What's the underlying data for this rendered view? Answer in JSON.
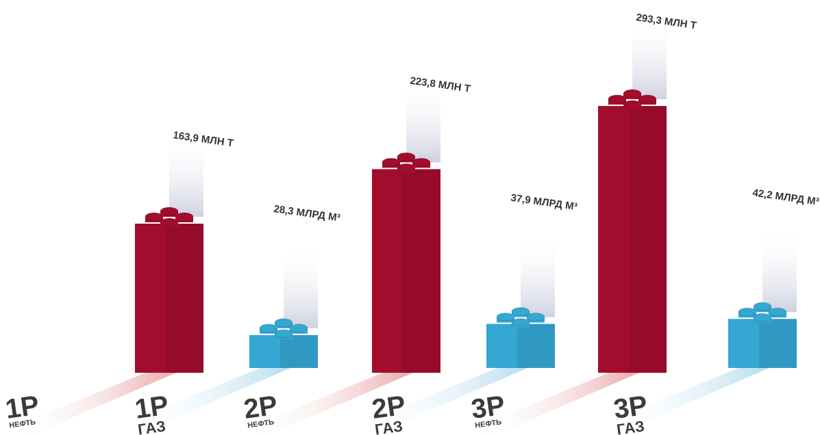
{
  "chart_data": {
    "type": "brick-bar",
    "categories": [
      "1Р",
      "2Р",
      "3Р"
    ],
    "series": [
      {
        "name": "НЕФТЬ",
        "color": "#a30d2d",
        "values": [
          163.9,
          223.8,
          293.3
        ],
        "value_labels": [
          "163,9 МЛН Т",
          "223,8 МЛН Т",
          "293,3 МЛН Т"
        ]
      },
      {
        "name": "ГАЗ",
        "color": "#35a7d3",
        "values": [
          28.3,
          37.9,
          42.2
        ],
        "value_labels": [
          "28,3 МЛРД М³",
          "37,9 МЛРД М³",
          "42,2 МЛРД М³"
        ]
      }
    ]
  }
}
